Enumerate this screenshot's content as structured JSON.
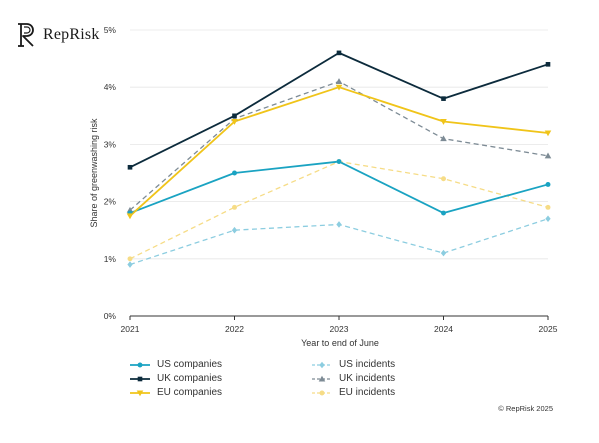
{
  "brand": {
    "name": "RepRisk",
    "logo_icon": "reprisk-r-logo"
  },
  "copyright": "© RepRisk 2025",
  "chart_data": {
    "type": "line",
    "x": [
      "2021",
      "2022",
      "2023",
      "2024",
      "2025"
    ],
    "xlabel": "Year to end of June",
    "ylabel": "Share of greenwashing risk",
    "ylim": [
      0,
      5
    ],
    "y_ticks": [
      "0%",
      "1%",
      "2%",
      "3%",
      "4%",
      "5%"
    ],
    "grid": "horizontal",
    "legend_position": "bottom",
    "series": [
      {
        "name": "US companies",
        "values": [
          1.8,
          2.5,
          2.7,
          1.8,
          2.3
        ],
        "color": "#1aa3c2",
        "dashed": false,
        "marker": "circle"
      },
      {
        "name": "UK companies",
        "values": [
          2.6,
          3.5,
          4.6,
          3.8,
          4.4
        ],
        "color": "#0c2b3c",
        "dashed": false,
        "marker": "square"
      },
      {
        "name": "EU companies",
        "values": [
          1.75,
          3.4,
          4.0,
          3.4,
          3.2
        ],
        "color": "#f0c419",
        "dashed": false,
        "marker": "triangle-down"
      },
      {
        "name": "US incidents",
        "values": [
          0.9,
          1.5,
          1.6,
          1.1,
          1.7
        ],
        "color": "#8ccde0",
        "dashed": true,
        "marker": "diamond"
      },
      {
        "name": "UK incidents",
        "values": [
          1.85,
          3.45,
          4.1,
          3.1,
          2.8
        ],
        "color": "#7d8b95",
        "dashed": true,
        "marker": "triangle-up"
      },
      {
        "name": "EU incidents",
        "values": [
          1.0,
          1.9,
          2.7,
          2.4,
          1.9
        ],
        "color": "#f6dc86",
        "dashed": true,
        "marker": "circle"
      }
    ]
  }
}
